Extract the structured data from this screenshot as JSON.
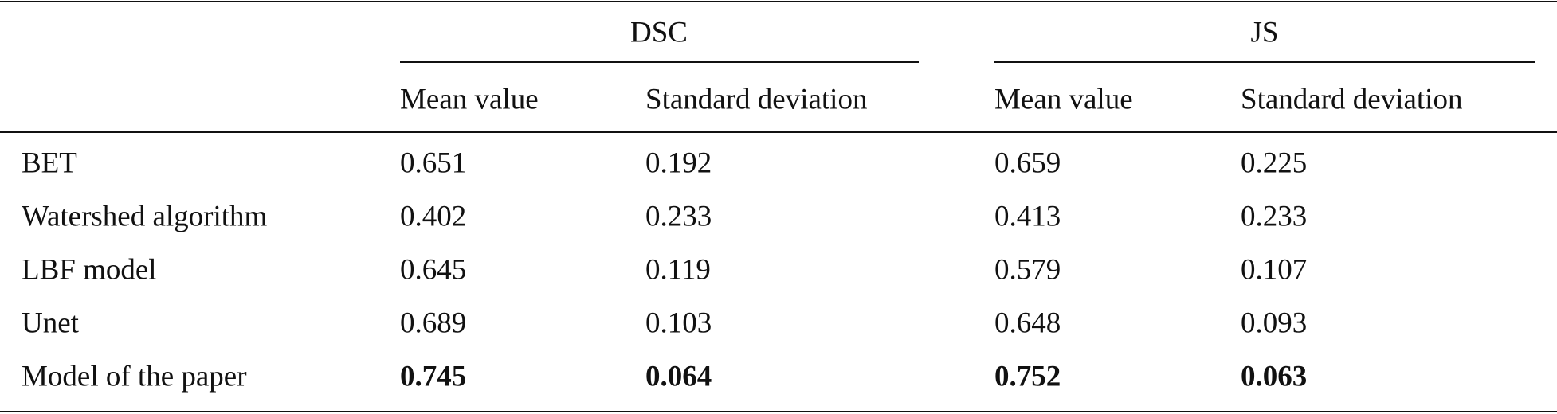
{
  "table": {
    "groups": [
      "DSC",
      "JS"
    ],
    "columns": [
      "Mean value",
      "Standard deviation",
      "Mean value",
      "Standard deviation"
    ],
    "rows": [
      {
        "label": "BET",
        "cells": [
          "0.651",
          "0.192",
          "0.659",
          "0.225"
        ]
      },
      {
        "label": "Watershed algorithm",
        "cells": [
          "0.402",
          "0.233",
          "0.413",
          "0.233"
        ]
      },
      {
        "label": "LBF model",
        "cells": [
          "0.645",
          "0.119",
          "0.579",
          "0.107"
        ]
      },
      {
        "label": "Unet",
        "cells": [
          "0.689",
          "0.103",
          "0.648",
          "0.093"
        ]
      },
      {
        "label": "Model of the paper",
        "cells": [
          "0.745",
          "0.064",
          "0.752",
          "0.063"
        ],
        "bold": true
      }
    ]
  }
}
